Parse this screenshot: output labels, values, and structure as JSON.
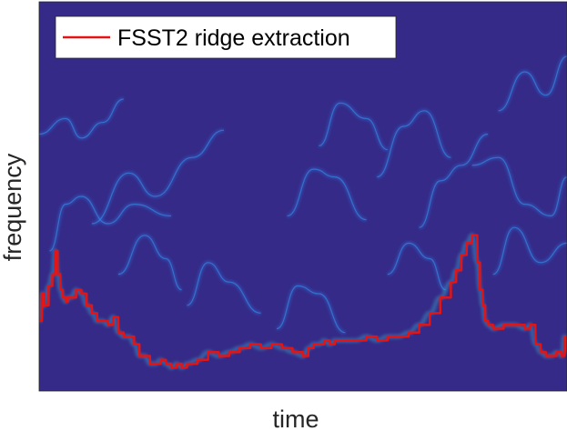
{
  "chart_data": {
    "type": "heatmap",
    "title": "",
    "xlabel": "time",
    "ylabel": "frequency",
    "xticks": [],
    "yticks": [],
    "grid": false,
    "colormap": "parula",
    "colors": {
      "background": "#352a87",
      "ridge_line": "#e51414",
      "legend_box": "#ffffff",
      "axis_text": "#262626"
    },
    "legend": {
      "placement": "top-left",
      "entries": [
        {
          "label": "FSST2 ridge extraction",
          "color": "#e51414"
        }
      ]
    },
    "x_range": [
      0,
      1
    ],
    "y_range": [
      0,
      1
    ],
    "ridge_extraction": {
      "name": "FSST2 ridge extraction",
      "x": [
        0.0,
        0.005,
        0.01,
        0.018,
        0.025,
        0.03,
        0.035,
        0.04,
        0.045,
        0.05,
        0.055,
        0.06,
        0.07,
        0.08,
        0.09,
        0.1,
        0.11,
        0.12,
        0.13,
        0.14,
        0.15,
        0.16,
        0.17,
        0.18,
        0.19,
        0.2,
        0.21,
        0.22,
        0.23,
        0.24,
        0.25,
        0.26,
        0.27,
        0.28,
        0.3,
        0.32,
        0.34,
        0.36,
        0.38,
        0.4,
        0.42,
        0.44,
        0.46,
        0.48,
        0.5,
        0.51,
        0.52,
        0.53,
        0.54,
        0.55,
        0.56,
        0.58,
        0.6,
        0.62,
        0.64,
        0.66,
        0.68,
        0.7,
        0.72,
        0.74,
        0.76,
        0.78,
        0.79,
        0.8,
        0.81,
        0.82,
        0.83,
        0.835,
        0.84,
        0.845,
        0.85,
        0.86,
        0.88,
        0.9,
        0.92,
        0.93,
        0.94,
        0.95,
        0.96,
        0.97,
        0.98,
        0.99,
        0.995,
        1.0
      ],
      "y": [
        0.18,
        0.25,
        0.22,
        0.27,
        0.3,
        0.36,
        0.3,
        0.26,
        0.24,
        0.23,
        0.24,
        0.24,
        0.26,
        0.25,
        0.22,
        0.2,
        0.18,
        0.18,
        0.17,
        0.19,
        0.15,
        0.14,
        0.14,
        0.12,
        0.09,
        0.09,
        0.07,
        0.07,
        0.08,
        0.07,
        0.06,
        0.07,
        0.06,
        0.07,
        0.08,
        0.1,
        0.09,
        0.1,
        0.11,
        0.12,
        0.11,
        0.12,
        0.11,
        0.1,
        0.09,
        0.11,
        0.12,
        0.12,
        0.13,
        0.12,
        0.13,
        0.13,
        0.13,
        0.14,
        0.13,
        0.14,
        0.14,
        0.15,
        0.17,
        0.2,
        0.24,
        0.28,
        0.31,
        0.35,
        0.38,
        0.4,
        0.33,
        0.26,
        0.22,
        0.18,
        0.17,
        0.16,
        0.17,
        0.17,
        0.16,
        0.17,
        0.12,
        0.1,
        0.09,
        0.09,
        0.1,
        0.09,
        0.14,
        0.1
      ]
    },
    "background_ridges": [
      {
        "x": [
          0.0,
          0.05,
          0.08,
          0.12,
          0.16
        ],
        "y": [
          0.66,
          0.7,
          0.65,
          0.69,
          0.75
        ]
      },
      {
        "x": [
          0.02,
          0.05,
          0.08,
          0.13,
          0.18,
          0.25
        ],
        "y": [
          0.36,
          0.48,
          0.5,
          0.43,
          0.48,
          0.45
        ]
      },
      {
        "x": [
          0.1,
          0.17,
          0.22,
          0.29,
          0.35
        ],
        "y": [
          0.43,
          0.56,
          0.5,
          0.6,
          0.67
        ]
      },
      {
        "x": [
          0.15,
          0.2,
          0.24,
          0.27
        ],
        "y": [
          0.3,
          0.4,
          0.34,
          0.26
        ]
      },
      {
        "x": [
          0.28,
          0.32,
          0.36,
          0.42
        ],
        "y": [
          0.22,
          0.33,
          0.28,
          0.2
        ]
      },
      {
        "x": [
          0.45,
          0.49,
          0.53,
          0.58
        ],
        "y": [
          0.16,
          0.27,
          0.25,
          0.15
        ]
      },
      {
        "x": [
          0.47,
          0.52,
          0.56,
          0.62
        ],
        "y": [
          0.45,
          0.57,
          0.55,
          0.44
        ]
      },
      {
        "x": [
          0.53,
          0.57,
          0.62,
          0.66
        ],
        "y": [
          0.63,
          0.74,
          0.7,
          0.62
        ]
      },
      {
        "x": [
          0.64,
          0.69,
          0.73,
          0.78
        ],
        "y": [
          0.55,
          0.68,
          0.72,
          0.6
        ]
      },
      {
        "x": [
          0.66,
          0.7,
          0.74,
          0.77
        ],
        "y": [
          0.3,
          0.38,
          0.34,
          0.26
        ]
      },
      {
        "x": [
          0.72,
          0.76,
          0.8,
          0.85
        ],
        "y": [
          0.42,
          0.54,
          0.58,
          0.66
        ]
      },
      {
        "x": [
          0.82,
          0.87,
          0.92,
          0.97,
          1.0
        ],
        "y": [
          0.58,
          0.6,
          0.48,
          0.45,
          0.55
        ]
      },
      {
        "x": [
          0.86,
          0.9,
          0.95,
          1.0
        ],
        "y": [
          0.3,
          0.42,
          0.33,
          0.38
        ]
      },
      {
        "x": [
          0.87,
          0.92,
          0.96,
          1.0
        ],
        "y": [
          0.72,
          0.82,
          0.76,
          0.86
        ]
      }
    ]
  }
}
